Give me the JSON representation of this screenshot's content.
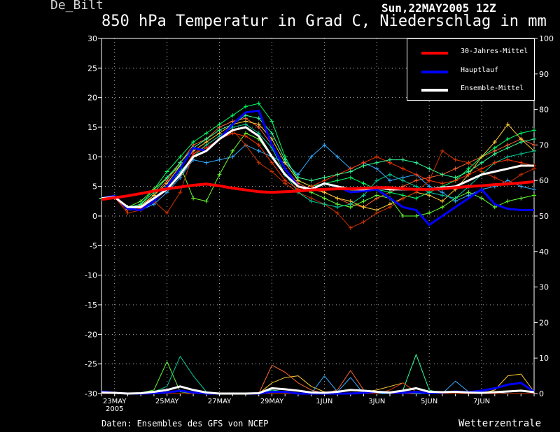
{
  "header": {
    "station": "De_Bilt",
    "datetime": "Sun,22MAY2005 12Z",
    "title": "850 hPa Temperatur in Grad C, Niederschlag in mm"
  },
  "footer": {
    "source": "Daten: Ensembles des GFS von NCEP",
    "brand": "Wetterzentrale"
  },
  "legend": [
    {
      "label": "30-Jahres-Mittel",
      "color": "#ff0000"
    },
    {
      "label": "Hauptlauf",
      "color": "#0000ff"
    },
    {
      "label": "Ensemble-Mittel",
      "color": "#ffffff"
    }
  ],
  "chart_data": {
    "type": "line",
    "x_tick_labels": [
      "23MAY",
      "25MAY",
      "27MAY",
      "29MAY",
      "1JUN",
      "3JUN",
      "5JUN",
      "7JUN"
    ],
    "x_year_label": "2005",
    "y_left": {
      "ylim": [
        -30,
        30
      ],
      "ticks": [
        30,
        25,
        20,
        15,
        10,
        5,
        0,
        -5,
        -10,
        -15,
        -20,
        -25,
        -30
      ]
    },
    "y_right": {
      "ylim": [
        0,
        100
      ],
      "ticks": [
        100,
        90,
        80,
        70,
        60,
        50,
        40,
        30,
        20,
        10,
        0
      ]
    },
    "grid": true,
    "legend_position": "top-right",
    "times": [
      "22MAY12",
      "23MAY00",
      "23MAY12",
      "24MAY00",
      "24MAY12",
      "25MAY00",
      "25MAY12",
      "26MAY00",
      "26MAY12",
      "27MAY00",
      "27MAY12",
      "28MAY00",
      "28MAY12",
      "29MAY00",
      "29MAY12",
      "30MAY00",
      "30MAY12",
      "31MAY00",
      "31MAY12",
      "1JUN00",
      "1JUN12",
      "2JUN00",
      "2JUN12",
      "3JUN00",
      "3JUN12",
      "4JUN00",
      "4JUN12",
      "5JUN00",
      "5JUN12",
      "6JUN00",
      "6JUN12",
      "7JUN00",
      "7JUN12",
      "8JUN00"
    ],
    "series": [
      {
        "name": "30-Jahres-Mittel",
        "color": "#ff0000",
        "axis": "left",
        "width": 4,
        "values": [
          2.8,
          3.1,
          3.4,
          3.8,
          4.2,
          4.6,
          4.9,
          5.2,
          5.4,
          5.1,
          4.7,
          4.4,
          4.1,
          4.0,
          4.1,
          4.2,
          4.4,
          4.5,
          4.6,
          4.6,
          4.7,
          4.8,
          4.8,
          4.6,
          4.5,
          4.5,
          4.6,
          4.8,
          5.0,
          5.1,
          5.3,
          5.4,
          5.6,
          5.8
        ]
      },
      {
        "name": "Hauptlauf",
        "color": "#0000ff",
        "axis": "left",
        "width": 3,
        "values": [
          3.0,
          3.4,
          1.2,
          1.0,
          2.5,
          5.0,
          8.0,
          11.5,
          11.0,
          13.0,
          15.5,
          17.5,
          17.8,
          12.0,
          8.0,
          5.0,
          4.5,
          5.5,
          5.0,
          4.0,
          4.2,
          4.5,
          3.0,
          1.5,
          1.0,
          -1.5,
          0.0,
          1.5,
          3.0,
          4.5,
          2.0,
          1.2,
          1.0,
          1.0
        ]
      },
      {
        "name": "Ensemble-Mittel",
        "color": "#ffffff",
        "axis": "left",
        "width": 3,
        "values": [
          3.0,
          3.2,
          1.5,
          1.5,
          3.0,
          4.5,
          7.0,
          10.0,
          11.0,
          13.0,
          14.5,
          15.0,
          13.5,
          10.0,
          7.0,
          5.0,
          4.5,
          5.5,
          5.0,
          4.5,
          4.5,
          4.8,
          4.5,
          4.5,
          4.5,
          4.5,
          4.8,
          5.0,
          6.0,
          7.0,
          7.5,
          8.0,
          8.5,
          8.5
        ]
      },
      {
        "name": "",
        "color": "#ff6633",
        "axis": "left",
        "width": 1,
        "marker": true,
        "values": [
          2.9,
          3.2,
          1.0,
          1.5,
          3.5,
          6.0,
          9.0,
          12.0,
          13.0,
          15.0,
          16.0,
          16.5,
          15.0,
          12.0,
          8.0,
          5.5,
          4.5,
          4.0,
          3.0,
          2.0,
          1.5,
          3.0,
          4.0,
          5.0,
          6.0,
          6.5,
          7.0,
          8.0,
          9.0,
          10.0,
          11.0,
          12.0,
          13.0,
          12.0
        ]
      },
      {
        "name": "",
        "color": "#00ff66",
        "axis": "left",
        "width": 1,
        "marker": true,
        "values": [
          3.0,
          3.3,
          1.3,
          2.0,
          4.5,
          7.5,
          10.0,
          12.5,
          14.0,
          15.5,
          17.0,
          18.5,
          19.0,
          16.0,
          10.0,
          6.0,
          5.0,
          5.5,
          6.0,
          6.5,
          5.5,
          4.5,
          4.0,
          3.5,
          3.0,
          4.0,
          5.0,
          6.0,
          8.0,
          10.0,
          11.5,
          13.0,
          14.0,
          14.5
        ]
      },
      {
        "name": "",
        "color": "#33aaff",
        "axis": "left",
        "width": 1,
        "marker": true,
        "values": [
          3.0,
          3.2,
          1.0,
          1.0,
          2.0,
          4.0,
          6.5,
          9.5,
          9.0,
          9.5,
          10.0,
          12.0,
          11.0,
          10.0,
          9.0,
          7.0,
          10.0,
          12.0,
          10.0,
          8.0,
          9.0,
          8.0,
          6.0,
          6.5,
          7.0,
          5.0,
          4.0,
          2.5,
          3.5,
          4.5,
          5.0,
          6.0,
          5.0,
          4.5
        ]
      },
      {
        "name": "",
        "color": "#ffcc33",
        "axis": "left",
        "width": 1,
        "marker": true,
        "values": [
          2.9,
          3.1,
          1.1,
          1.8,
          3.5,
          5.5,
          8.5,
          11.0,
          12.5,
          14.0,
          15.5,
          16.0,
          15.5,
          13.0,
          9.0,
          6.0,
          5.0,
          4.0,
          3.0,
          2.5,
          1.5,
          1.0,
          2.0,
          3.0,
          4.0,
          3.5,
          2.5,
          4.5,
          7.0,
          10.0,
          12.5,
          15.5,
          13.0,
          11.0
        ]
      },
      {
        "name": "",
        "color": "#66ff33",
        "axis": "left",
        "width": 1,
        "marker": true,
        "values": [
          3.0,
          3.3,
          1.5,
          2.5,
          4.5,
          6.5,
          8.5,
          3.0,
          2.5,
          7.0,
          11.0,
          14.0,
          13.0,
          10.0,
          7.0,
          5.0,
          4.0,
          3.0,
          2.0,
          1.5,
          2.5,
          3.5,
          3.0,
          0.0,
          0.0,
          0.5,
          1.5,
          3.0,
          4.0,
          3.0,
          1.5,
          2.5,
          3.0,
          3.5
        ]
      },
      {
        "name": "",
        "color": "#cc3300",
        "axis": "left",
        "width": 1,
        "marker": true,
        "values": [
          3.0,
          3.2,
          0.5,
          1.0,
          2.5,
          0.5,
          4.0,
          10.5,
          12.0,
          13.5,
          14.5,
          12.0,
          9.0,
          7.5,
          5.5,
          4.0,
          3.0,
          2.0,
          0.5,
          -2.0,
          -1.0,
          0.5,
          1.5,
          3.0,
          4.0,
          6.0,
          11.0,
          9.5,
          9.0,
          7.5,
          6.5,
          5.5,
          7.0,
          8.0
        ]
      },
      {
        "name": "",
        "color": "#00cc99",
        "axis": "left",
        "width": 1,
        "marker": true,
        "values": [
          2.9,
          3.3,
          1.2,
          1.5,
          3.0,
          5.0,
          7.5,
          10.0,
          12.0,
          13.5,
          15.0,
          15.5,
          14.0,
          11.5,
          7.0,
          4.0,
          2.5,
          2.0,
          1.5,
          2.0,
          3.5,
          6.0,
          7.0,
          6.0,
          5.0,
          4.0,
          3.5,
          3.0,
          5.0,
          7.0,
          9.0,
          10.0,
          10.5,
          11.0
        ]
      },
      {
        "name": "",
        "color": "#ff3300",
        "axis": "left",
        "width": 1,
        "marker": true,
        "values": [
          3.0,
          3.1,
          1.0,
          1.3,
          2.5,
          4.5,
          7.0,
          10.5,
          11.5,
          13.0,
          14.0,
          13.5,
          12.0,
          9.0,
          6.0,
          4.5,
          5.0,
          6.0,
          7.0,
          8.0,
          9.0,
          10.0,
          9.0,
          8.0,
          7.0,
          6.0,
          5.5,
          6.0,
          7.0,
          8.0,
          9.0,
          9.5,
          9.0,
          8.5
        ]
      },
      {
        "name": "",
        "color": "#33ff99",
        "axis": "left",
        "width": 1,
        "marker": true,
        "values": [
          3.0,
          3.2,
          1.4,
          2.0,
          4.0,
          6.5,
          9.0,
          11.5,
          13.0,
          14.5,
          15.5,
          17.0,
          16.5,
          14.0,
          9.5,
          6.5,
          6.0,
          6.5,
          7.0,
          7.5,
          8.5,
          9.0,
          9.5,
          9.5,
          9.0,
          8.0,
          7.0,
          6.5,
          7.5,
          9.0,
          10.5,
          11.5,
          12.5,
          13.0
        ]
      },
      {
        "name": "",
        "color": "#0000ff",
        "axis": "right",
        "width": 3,
        "values": [
          0.6,
          0.2,
          0.0,
          0.0,
          0.1,
          0.3,
          0.8,
          0.3,
          0.0,
          0.0,
          0.0,
          0.0,
          0.0,
          0.5,
          0.5,
          0.0,
          0.0,
          0.0,
          0.0,
          0.0,
          0.2,
          0.5,
          0.3,
          0.2,
          0.5,
          0.1,
          0.3,
          0.6,
          0.4,
          0.8,
          1.5,
          2.5,
          3.0,
          0.5
        ]
      },
      {
        "name": "",
        "color": "#ffffff",
        "axis": "right",
        "width": 3,
        "values": [
          0.3,
          0.2,
          0.0,
          0.1,
          0.5,
          1.0,
          2.0,
          1.0,
          0.3,
          0.0,
          0.0,
          0.0,
          0.1,
          1.5,
          1.2,
          0.8,
          0.3,
          0.2,
          0.5,
          1.0,
          0.8,
          0.5,
          0.3,
          0.8,
          1.5,
          0.5,
          0.4,
          0.5,
          0.3,
          0.2,
          0.4,
          0.6,
          0.8,
          0.4
        ]
      },
      {
        "name": "",
        "color": "#66ff33",
        "axis": "right",
        "width": 1,
        "values": [
          0.0,
          0.0,
          0.0,
          0.2,
          1.0,
          9.0,
          0.5,
          0.0,
          0.0,
          0.0,
          0.0,
          0.0,
          0.0,
          0.0,
          0.0,
          0.0,
          0.0,
          0.0,
          0.0,
          0.0,
          0.0,
          0.0,
          0.0,
          0.0,
          0.0,
          0.0,
          0.0,
          0.0,
          0.0,
          0.0,
          0.0,
          0.0,
          0.0,
          0.0
        ]
      },
      {
        "name": "",
        "color": "#00cc99",
        "axis": "right",
        "width": 1,
        "values": [
          0.0,
          0.0,
          0.0,
          0.0,
          0.5,
          2.0,
          10.5,
          5.0,
          0.5,
          0.0,
          0.0,
          0.0,
          0.0,
          0.0,
          0.0,
          0.0,
          0.0,
          0.0,
          0.0,
          0.0,
          0.0,
          0.0,
          0.0,
          0.0,
          0.0,
          0.0,
          0.0,
          0.0,
          0.0,
          0.0,
          0.0,
          0.0,
          0.0,
          0.0
        ]
      },
      {
        "name": "",
        "color": "#ff6633",
        "axis": "right",
        "width": 1,
        "values": [
          0.0,
          0.0,
          0.0,
          0.0,
          0.0,
          0.0,
          0.0,
          0.0,
          0.0,
          0.0,
          0.0,
          0.0,
          0.0,
          8.0,
          6.0,
          3.0,
          1.0,
          0.0,
          1.0,
          6.5,
          1.0,
          0.5,
          0.0,
          0.0,
          0.0,
          0.0,
          0.0,
          0.0,
          0.0,
          0.0,
          0.0,
          0.0,
          0.0,
          0.0
        ]
      },
      {
        "name": "",
        "color": "#ffcc33",
        "axis": "right",
        "width": 1,
        "values": [
          0.0,
          0.0,
          0.0,
          0.0,
          0.0,
          0.0,
          0.0,
          0.0,
          0.0,
          0.0,
          0.0,
          0.0,
          0.0,
          3.0,
          4.5,
          5.0,
          2.0,
          0.5,
          0.0,
          0.0,
          0.5,
          1.0,
          2.0,
          3.0,
          0.5,
          0.0,
          0.0,
          0.0,
          0.0,
          0.0,
          1.0,
          5.0,
          5.5,
          0.5
        ]
      },
      {
        "name": "",
        "color": "#33ff99",
        "axis": "right",
        "width": 1,
        "values": [
          0.0,
          0.0,
          0.0,
          0.0,
          0.0,
          0.0,
          0.0,
          0.0,
          0.0,
          0.0,
          0.0,
          0.0,
          0.0,
          1.0,
          0.5,
          0.0,
          0.0,
          0.0,
          0.0,
          0.0,
          0.0,
          0.0,
          0.0,
          1.0,
          11.0,
          1.0,
          0.0,
          0.0,
          0.0,
          0.0,
          0.0,
          0.0,
          0.0,
          0.0
        ]
      },
      {
        "name": "",
        "color": "#33aaff",
        "axis": "right",
        "width": 1,
        "values": [
          0.0,
          0.0,
          0.0,
          0.0,
          0.0,
          0.0,
          0.0,
          0.0,
          0.0,
          0.0,
          0.0,
          0.0,
          0.0,
          0.0,
          0.0,
          0.0,
          0.0,
          5.0,
          0.5,
          4.5,
          0.0,
          0.0,
          0.0,
          0.5,
          0.0,
          0.0,
          0.0,
          3.5,
          0.5,
          0.0,
          0.5,
          0.0,
          0.0,
          0.0
        ]
      },
      {
        "name": "",
        "color": "#cc3300",
        "axis": "right",
        "width": 1,
        "values": [
          0.0,
          0.0,
          0.0,
          0.0,
          0.0,
          0.0,
          0.0,
          0.0,
          0.0,
          0.0,
          0.0,
          0.0,
          0.0,
          0.0,
          0.0,
          0.0,
          0.0,
          0.0,
          0.0,
          0.0,
          0.0,
          0.0,
          1.0,
          3.0,
          0.5,
          0.0,
          0.0,
          0.0,
          0.0,
          0.0,
          0.0,
          0.0,
          0.0,
          0.0
        ]
      }
    ]
  }
}
